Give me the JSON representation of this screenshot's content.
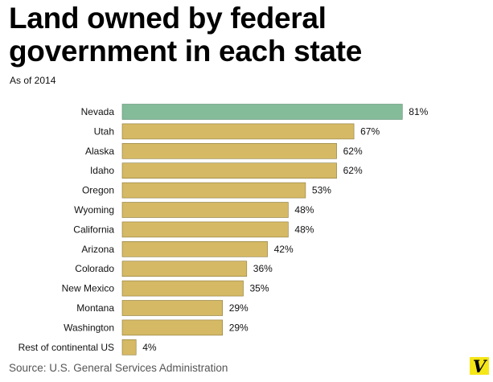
{
  "header": {
    "title_line1": "Land owned by federal",
    "title_line2": "government in each state",
    "subtitle": "As of 2014"
  },
  "footer": {
    "source": "Source: U.S. General Services Administration",
    "logo_text": "V"
  },
  "colors": {
    "highlight": "#84bb99",
    "bar": "#d5b964",
    "bar_stroke": "#8a7a3e",
    "highlight_stroke": "#5f8f73",
    "logo_bg": "#f5e617"
  },
  "chart_data": {
    "type": "bar",
    "orientation": "horizontal",
    "title": "Land owned by federal government in each state",
    "subtitle": "As of 2014",
    "xlabel": "",
    "ylabel": "",
    "unit": "%",
    "xlim": [
      0,
      100
    ],
    "grid": false,
    "highlight_category": "Nevada",
    "categories": [
      "Nevada",
      "Utah",
      "Alaska",
      "Idaho",
      "Oregon",
      "Wyoming",
      "California",
      "Arizona",
      "Colorado",
      "New Mexico",
      "Montana",
      "Washington",
      "Rest of continental US"
    ],
    "values": [
      81,
      67,
      62,
      62,
      53,
      48,
      48,
      42,
      36,
      35,
      29,
      29,
      4
    ],
    "value_labels": [
      "81%",
      "67%",
      "62%",
      "62%",
      "53%",
      "48%",
      "48%",
      "42%",
      "36%",
      "35%",
      "29%",
      "29%",
      "4%"
    ]
  }
}
